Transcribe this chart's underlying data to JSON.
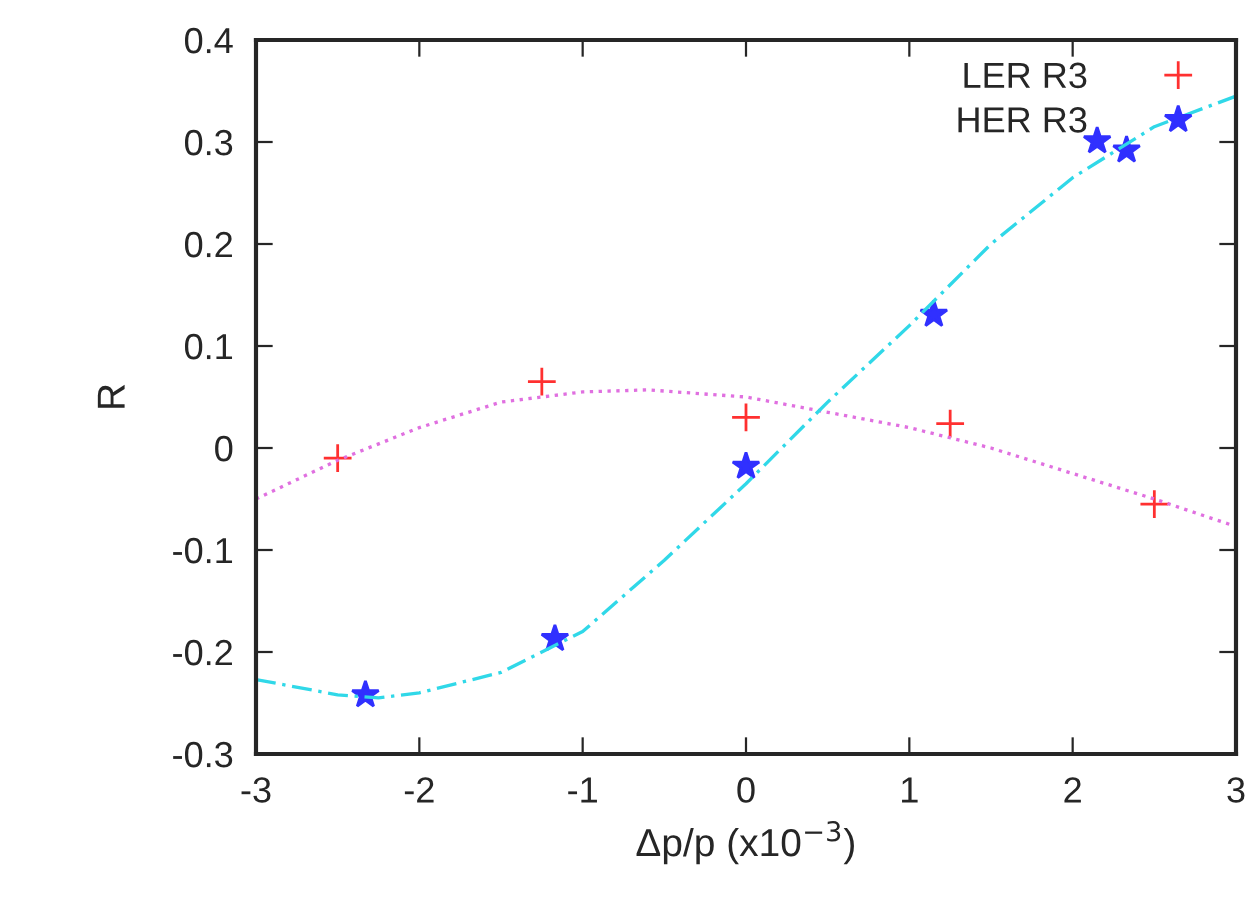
{
  "chart_data": {
    "type": "scatter",
    "xlabel": "Δp/p (x10$^{−3}$)",
    "ylabel": "R",
    "xlim": [
      -3,
      3
    ],
    "ylim": [
      -0.3,
      0.4
    ],
    "xticks": [
      -3,
      -2,
      -1,
      0,
      1,
      2,
      3
    ],
    "yticks": [
      -0.3,
      -0.2,
      -0.1,
      0,
      0.1,
      0.2,
      0.3,
      0.4
    ],
    "legend": "top right",
    "series": [
      {
        "name": "LER R3",
        "type": "scatter",
        "marker": "cross",
        "color": "#ff3030",
        "x": [
          -2.5,
          -1.25,
          0,
          1.25,
          2.5
        ],
        "values": [
          -0.01,
          0.065,
          0.03,
          0.024,
          -0.055
        ]
      },
      {
        "name": "HER R3",
        "type": "scatter",
        "marker": "star",
        "color": "#3030ff",
        "x": [
          -2.33,
          -1.17,
          0,
          1.15,
          2.15,
          2.33
        ],
        "values": [
          -0.242,
          -0.187,
          -0.018,
          0.131,
          0.301,
          0.292
        ]
      },
      {
        "type": "line",
        "line_style": "dotted",
        "color": "#e070e0",
        "x": [
          -3,
          -2.5,
          -2,
          -1.5,
          -1,
          -0.6,
          0,
          0.5,
          1,
          1.5,
          2,
          2.5,
          3
        ],
        "values": [
          -0.05,
          -0.012,
          0.02,
          0.045,
          0.055,
          0.057,
          0.05,
          0.035,
          0.02,
          0.0,
          -0.025,
          -0.05,
          -0.077
        ]
      },
      {
        "type": "line",
        "line_style": "dashed",
        "color": "#30d8e8",
        "x": [
          -3,
          -2.5,
          -2.25,
          -2,
          -1.5,
          -1,
          -0.5,
          0,
          0.5,
          1,
          1.5,
          2,
          2.5,
          3
        ],
        "values": [
          -0.227,
          -0.242,
          -0.245,
          -0.24,
          -0.22,
          -0.18,
          -0.11,
          -0.035,
          0.045,
          0.12,
          0.2,
          0.265,
          0.315,
          0.345
        ]
      }
    ]
  }
}
